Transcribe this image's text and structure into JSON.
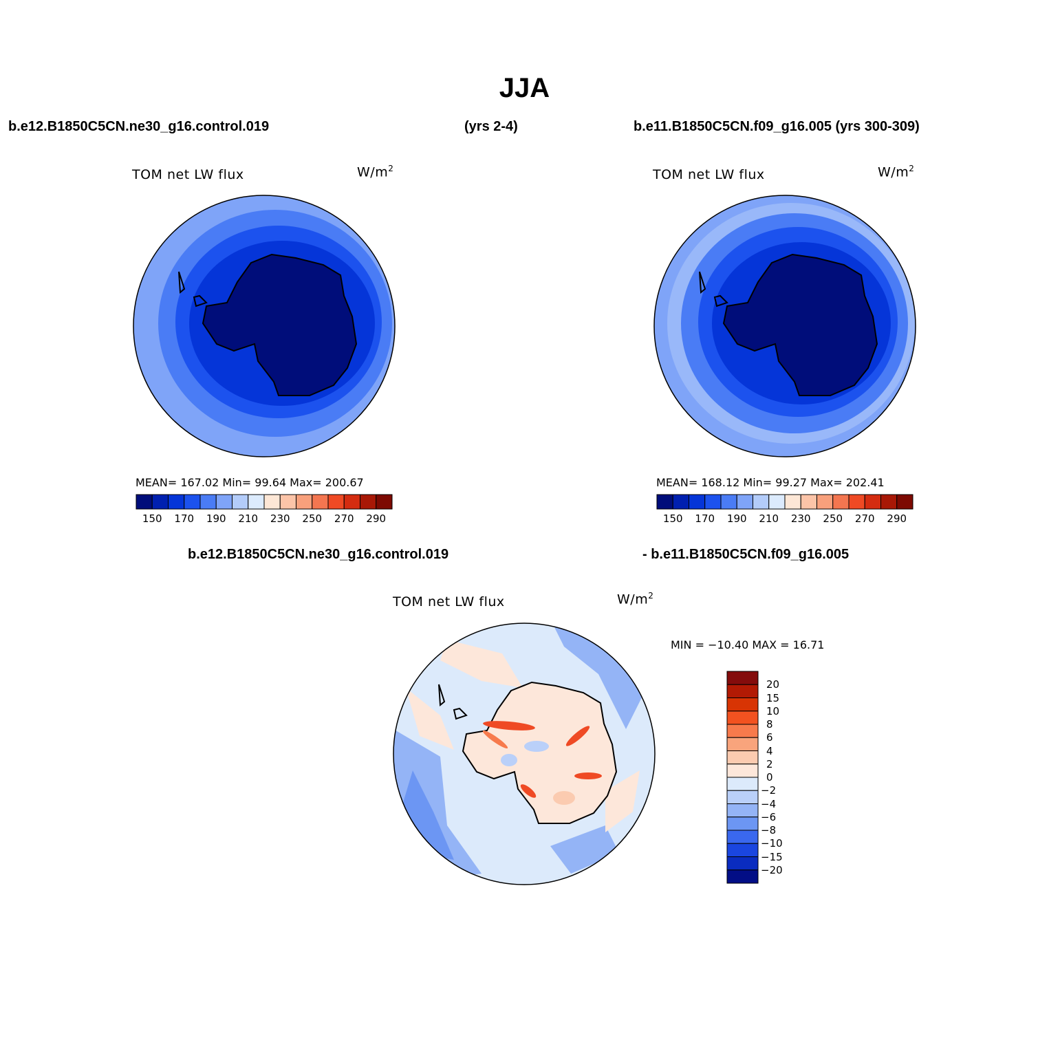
{
  "title": "JJA",
  "header": {
    "case1": "b.e12.B1850C5CN.ne30_g16.control.019",
    "years1": "(yrs 2-4)",
    "case2": "b.e11.B1850C5CN.f09_g16.005 (yrs 300-309)",
    "diff_left": "b.e12.B1850C5CN.ne30_g16.control.019",
    "diff_right": "- b.e11.B1850C5CN.f09_g16.005"
  },
  "panels": [
    {
      "label": "TOM  net  LW  flux",
      "units_base": "W/m",
      "units_exp": "2",
      "stats": "MEAN= 167.02   Min=   99.64   Max= 200.67"
    },
    {
      "label": "TOM  net  LW  flux",
      "units_base": "W/m",
      "units_exp": "2",
      "stats": "MEAN= 168.12   Min=   99.27   Max= 202.41"
    }
  ],
  "diff_panel": {
    "label": "TOM  net  LW  flux",
    "units_base": "W/m",
    "units_exp": "2",
    "stats": "MIN = −10.40 MAX =   16.71"
  },
  "colorbar_abs": {
    "colors": [
      "#000d7a",
      "#0020b0",
      "#0535d8",
      "#1c52ee",
      "#4a7cf5",
      "#7fa4f8",
      "#b3ccfa",
      "#dcebfd",
      "#fde7d6",
      "#fcc4a8",
      "#f8a07c",
      "#f47650",
      "#ef4a24",
      "#d42c10",
      "#a81806",
      "#7d0a02"
    ],
    "ticks": [
      "150",
      "170",
      "190",
      "210",
      "230",
      "250",
      "270",
      "290"
    ]
  },
  "colorbar_diff": {
    "colors": [
      "#840c0c",
      "#b21a04",
      "#d83404",
      "#f25220",
      "#f77a4c",
      "#f9a47c",
      "#fbcbb0",
      "#fde7da",
      "#dceafb",
      "#bad0f9",
      "#94b4f6",
      "#6c96f3",
      "#3a68ee",
      "#1a46e0",
      "#0a2cc0",
      "#020e86"
    ],
    "ticks": [
      "20",
      "15",
      "10",
      "8",
      "6",
      "4",
      "2",
      "0",
      "−2",
      "−4",
      "−6",
      "−8",
      "−10",
      "−15",
      "−20"
    ]
  }
}
